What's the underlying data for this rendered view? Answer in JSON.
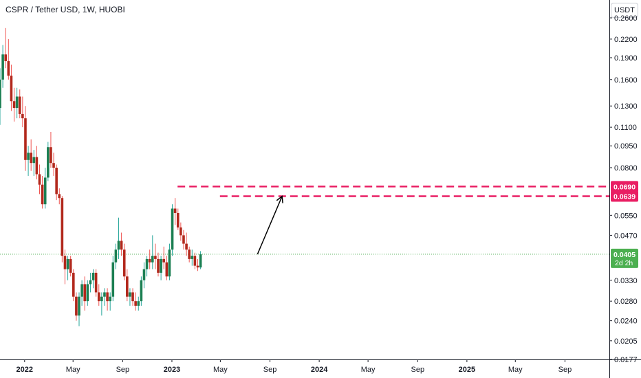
{
  "header": {
    "title": "CSPR / Tether USD, 1W, HUOBI",
    "currency_button": "USDT"
  },
  "colors": {
    "up": "#26a69a",
    "down": "#ef5350",
    "body_up": "#1b7f52",
    "body_down": "#b2281c",
    "resistance": "#e91e63",
    "last_price": "#4caf50",
    "arrow": "#000000"
  },
  "chart_data": {
    "type": "candlestick",
    "title": "CSPR / Tether USD, 1W, HUOBI",
    "y_scale": "log",
    "ylim": [
      0.0177,
      0.26
    ],
    "y_ticks": [
      "0.2600",
      "0.2200",
      "0.1900",
      "0.1600",
      "0.1300",
      "0.1100",
      "0.0950",
      "0.0800",
      "0.0550",
      "0.0470",
      "0.0405",
      "0.0330",
      "0.0280",
      "0.0240",
      "0.0205",
      "0.0177"
    ],
    "x_ticks": [
      {
        "label": "2022",
        "bold": true,
        "date": "2022-01-01"
      },
      {
        "label": "May",
        "bold": false,
        "date": "2022-05-01"
      },
      {
        "label": "Sep",
        "bold": false,
        "date": "2022-09-01"
      },
      {
        "label": "2023",
        "bold": true,
        "date": "2023-01-01"
      },
      {
        "label": "May",
        "bold": false,
        "date": "2023-05-01"
      },
      {
        "label": "Sep",
        "bold": false,
        "date": "2023-09-01"
      },
      {
        "label": "2024",
        "bold": true,
        "date": "2024-01-01"
      },
      {
        "label": "May",
        "bold": false,
        "date": "2024-05-01"
      },
      {
        "label": "Sep",
        "bold": false,
        "date": "2024-09-01"
      },
      {
        "label": "2025",
        "bold": true,
        "date": "2025-01-01"
      },
      {
        "label": "May",
        "bold": false,
        "date": "2025-05-01"
      },
      {
        "label": "Sep",
        "bold": false,
        "date": "2025-09-01"
      }
    ],
    "first_date": "2021-11-01",
    "xlim_dates": [
      "2021-11-01",
      "2025-12-20"
    ],
    "ohlc": [
      [
        0.128,
        0.175,
        0.112,
        0.16
      ],
      [
        0.16,
        0.21,
        0.15,
        0.195
      ],
      [
        0.195,
        0.24,
        0.175,
        0.185
      ],
      [
        0.185,
        0.22,
        0.16,
        0.165
      ],
      [
        0.165,
        0.18,
        0.125,
        0.135
      ],
      [
        0.135,
        0.15,
        0.115,
        0.128
      ],
      [
        0.128,
        0.15,
        0.118,
        0.14
      ],
      [
        0.14,
        0.148,
        0.118,
        0.122
      ],
      [
        0.122,
        0.14,
        0.11,
        0.118
      ],
      [
        0.118,
        0.13,
        0.078,
        0.085
      ],
      [
        0.085,
        0.095,
        0.075,
        0.09
      ],
      [
        0.09,
        0.1,
        0.078,
        0.083
      ],
      [
        0.083,
        0.092,
        0.075,
        0.087
      ],
      [
        0.087,
        0.095,
        0.073,
        0.076
      ],
      [
        0.076,
        0.082,
        0.065,
        0.07
      ],
      [
        0.07,
        0.075,
        0.058,
        0.06
      ],
      [
        0.06,
        0.08,
        0.058,
        0.074
      ],
      [
        0.074,
        0.098,
        0.072,
        0.094
      ],
      [
        0.094,
        0.106,
        0.08,
        0.083
      ],
      [
        0.083,
        0.09,
        0.075,
        0.08
      ],
      [
        0.08,
        0.082,
        0.062,
        0.065
      ],
      [
        0.065,
        0.068,
        0.06,
        0.063
      ],
      [
        0.063,
        0.064,
        0.038,
        0.04
      ],
      [
        0.04,
        0.042,
        0.032,
        0.036
      ],
      [
        0.036,
        0.04,
        0.033,
        0.039
      ],
      [
        0.039,
        0.04,
        0.034,
        0.035
      ],
      [
        0.035,
        0.036,
        0.028,
        0.029
      ],
      [
        0.029,
        0.03,
        0.024,
        0.025
      ],
      [
        0.025,
        0.03,
        0.023,
        0.029
      ],
      [
        0.029,
        0.033,
        0.027,
        0.032
      ],
      [
        0.032,
        0.034,
        0.026,
        0.028
      ],
      [
        0.028,
        0.033,
        0.027,
        0.032
      ],
      [
        0.032,
        0.035,
        0.03,
        0.033
      ],
      [
        0.033,
        0.036,
        0.031,
        0.035
      ],
      [
        0.035,
        0.036,
        0.029,
        0.03
      ],
      [
        0.03,
        0.032,
        0.027,
        0.028
      ],
      [
        0.028,
        0.03,
        0.025,
        0.029
      ],
      [
        0.029,
        0.031,
        0.027,
        0.03
      ],
      [
        0.03,
        0.031,
        0.026,
        0.028
      ],
      [
        0.028,
        0.03,
        0.026,
        0.029
      ],
      [
        0.029,
        0.04,
        0.028,
        0.038
      ],
      [
        0.038,
        0.044,
        0.036,
        0.042
      ],
      [
        0.042,
        0.054,
        0.039,
        0.045
      ],
      [
        0.045,
        0.048,
        0.04,
        0.042
      ],
      [
        0.042,
        0.044,
        0.033,
        0.034
      ],
      [
        0.034,
        0.036,
        0.028,
        0.029
      ],
      [
        0.029,
        0.031,
        0.027,
        0.03
      ],
      [
        0.03,
        0.031,
        0.027,
        0.028
      ],
      [
        0.028,
        0.03,
        0.026,
        0.027
      ],
      [
        0.027,
        0.029,
        0.026,
        0.028
      ],
      [
        0.028,
        0.034,
        0.027,
        0.033
      ],
      [
        0.033,
        0.038,
        0.031,
        0.036
      ],
      [
        0.036,
        0.04,
        0.034,
        0.039
      ],
      [
        0.039,
        0.042,
        0.036,
        0.038
      ],
      [
        0.038,
        0.047,
        0.036,
        0.04
      ],
      [
        0.04,
        0.044,
        0.036,
        0.039
      ],
      [
        0.039,
        0.041,
        0.034,
        0.035
      ],
      [
        0.035,
        0.04,
        0.033,
        0.039
      ],
      [
        0.039,
        0.043,
        0.036,
        0.038
      ],
      [
        0.038,
        0.04,
        0.033,
        0.034
      ],
      [
        0.034,
        0.044,
        0.033,
        0.042
      ],
      [
        0.042,
        0.06,
        0.04,
        0.058
      ],
      [
        0.058,
        0.063,
        0.051,
        0.056
      ],
      [
        0.056,
        0.058,
        0.049,
        0.05
      ],
      [
        0.05,
        0.052,
        0.045,
        0.047
      ],
      [
        0.047,
        0.049,
        0.042,
        0.044
      ],
      [
        0.044,
        0.048,
        0.04,
        0.042
      ],
      [
        0.042,
        0.043,
        0.038,
        0.039
      ],
      [
        0.039,
        0.042,
        0.037,
        0.04
      ],
      [
        0.04,
        0.041,
        0.036,
        0.037
      ],
      [
        0.037,
        0.039,
        0.0355,
        0.0365
      ],
      [
        0.0365,
        0.0415,
        0.036,
        0.0405
      ]
    ],
    "resistance_levels": [
      {
        "label": "0.0690",
        "value": 0.069,
        "start_date": "2023-01-15"
      },
      {
        "label": "0.0639",
        "value": 0.0639,
        "start_date": "2023-04-30"
      }
    ],
    "projection_arrow": {
      "from_date": "2023-08-01",
      "from_value": 0.0405,
      "to_date": "2023-10-01",
      "to_value": 0.0639
    },
    "last_price": {
      "label": "0.0405",
      "value": 0.0405,
      "countdown": "2d 2h"
    }
  }
}
